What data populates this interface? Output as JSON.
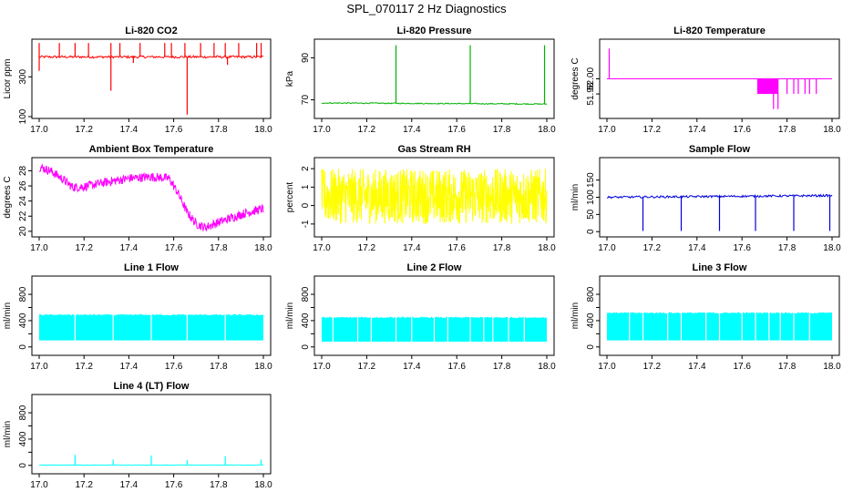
{
  "page": {
    "title": "SPL_070117  2 Hz Diagnostics"
  },
  "chart_data": [
    {
      "id": "co2",
      "type": "line",
      "title": "Li-820 CO2",
      "ylabel": "Licor ppm",
      "color": "#ff0000",
      "xlim": [
        17.0,
        18.0
      ],
      "ylim": [
        100,
        480
      ],
      "xticks": [
        17.0,
        17.2,
        17.4,
        17.6,
        17.8,
        18.0
      ],
      "yticks": [
        100,
        300
      ],
      "ytick_labels": [
        "100",
        "300"
      ],
      "baseline": 400,
      "noise": 6,
      "spikes": [
        [
          17.0,
          470
        ],
        [
          17.09,
          470
        ],
        [
          17.16,
          470
        ],
        [
          17.22,
          470
        ],
        [
          17.32,
          470
        ],
        [
          17.36,
          470
        ],
        [
          17.45,
          470
        ],
        [
          17.56,
          470
        ],
        [
          17.59,
          470
        ],
        [
          17.65,
          470
        ],
        [
          17.72,
          470
        ],
        [
          17.78,
          470
        ],
        [
          17.83,
          470
        ],
        [
          17.89,
          470
        ],
        [
          17.97,
          470
        ],
        [
          17.99,
          470
        ]
      ],
      "dips": [
        [
          17.0,
          330
        ],
        [
          17.32,
          230
        ],
        [
          17.66,
          110
        ],
        [
          17.84,
          360
        ],
        [
          17.42,
          370
        ]
      ]
    },
    {
      "id": "pressure",
      "type": "line",
      "title": "Li-820 Pressure",
      "ylabel": "kPa",
      "color": "#00b000",
      "xlim": [
        17.0,
        18.0
      ],
      "ylim": [
        62,
        98
      ],
      "xticks": [
        17.0,
        17.2,
        17.4,
        17.6,
        17.8,
        18.0
      ],
      "yticks": [
        70,
        90
      ],
      "ytick_labels": [
        "70",
        "90"
      ],
      "baseline": 68.5,
      "baseline_end": 68.0,
      "noise": 0.25,
      "spikes": [
        [
          17.33,
          96
        ],
        [
          17.66,
          96
        ],
        [
          17.99,
          96
        ]
      ]
    },
    {
      "id": "licor-temp",
      "type": "line",
      "title": "Li-820 Temperature",
      "ylabel": "degrees C",
      "color": "#ff00ff",
      "xlim": [
        17.0,
        18.0
      ],
      "ylim": [
        51.95,
        52.05
      ],
      "xticks": [
        17.0,
        17.2,
        17.4,
        17.6,
        17.8,
        18.0
      ],
      "yticks": [
        51.98,
        52.0
      ],
      "ytick_labels": [
        "51.98",
        "52.00"
      ],
      "baseline": 52.0,
      "noise": 0,
      "spikes": [
        [
          17.01,
          52.04
        ]
      ],
      "dips": [
        [
          17.67,
          51.98
        ],
        [
          17.7,
          51.98
        ],
        [
          17.74,
          51.96
        ],
        [
          17.76,
          51.96
        ],
        [
          17.8,
          51.98
        ],
        [
          17.83,
          51.98
        ],
        [
          17.85,
          51.98
        ],
        [
          17.88,
          51.98
        ],
        [
          17.9,
          51.98
        ],
        [
          17.93,
          51.98
        ]
      ]
    },
    {
      "id": "box-temp",
      "type": "line",
      "title": "Ambient Box Temperature",
      "ylabel": "degrees C",
      "color": "#ff00ff",
      "xlim": [
        17.0,
        18.0
      ],
      "ylim": [
        19.5,
        29.5
      ],
      "xticks": [
        17.0,
        17.2,
        17.4,
        17.6,
        17.8,
        18.0
      ],
      "yticks": [
        20,
        22,
        24,
        26,
        28
      ],
      "ytick_labels": [
        "20",
        "22",
        "24",
        "26",
        "28"
      ],
      "x": [
        17.0,
        17.05,
        17.1,
        17.15,
        17.2,
        17.3,
        17.4,
        17.5,
        17.58,
        17.62,
        17.66,
        17.7,
        17.74,
        17.8,
        17.86,
        17.92,
        18.0
      ],
      "y": [
        28.5,
        28.0,
        27.0,
        25.8,
        25.9,
        26.5,
        27.0,
        27.2,
        27.0,
        25.0,
        22.5,
        21.0,
        20.5,
        21.2,
        21.8,
        22.4,
        23.0
      ],
      "noise": 0.6
    },
    {
      "id": "gas-rh",
      "type": "line",
      "title": "Gas Stream RH",
      "ylabel": "percent",
      "color": "#ffff00",
      "xlim": [
        17.0,
        18.0
      ],
      "ylim": [
        -1.6,
        2.5
      ],
      "xticks": [
        17.0,
        17.2,
        17.4,
        17.6,
        17.8,
        18.0
      ],
      "yticks": [
        -1,
        0,
        1,
        2
      ],
      "ytick_labels": [
        "-1",
        "0",
        "1",
        "2"
      ],
      "baseline": 0.5,
      "noise": 1.6,
      "band": [
        -1.0,
        2.0
      ]
    },
    {
      "id": "sample-flow",
      "type": "line",
      "title": "Sample Flow",
      "ylabel": "ml/min",
      "color": "#0000dd",
      "xlim": [
        17.0,
        18.0
      ],
      "ylim": [
        -10,
        210
      ],
      "xticks": [
        17.0,
        17.2,
        17.4,
        17.6,
        17.8,
        18.0
      ],
      "yticks": [
        0,
        50,
        100,
        150
      ],
      "ytick_labels": [
        "0",
        "50",
        "100",
        "150"
      ],
      "baseline": 100,
      "baseline_end": 105,
      "noise": 3,
      "dips": [
        [
          17.16,
          2
        ],
        [
          17.33,
          2
        ],
        [
          17.5,
          2
        ],
        [
          17.66,
          2
        ],
        [
          17.83,
          2
        ],
        [
          17.99,
          2
        ]
      ]
    },
    {
      "id": "line1",
      "type": "area",
      "title": "Line 1 Flow",
      "ylabel": "ml/min",
      "color": "#00ffff",
      "xlim": [
        17.0,
        18.0
      ],
      "ylim": [
        -100,
        1050
      ],
      "xticks": [
        17.0,
        17.2,
        17.4,
        17.6,
        17.8,
        18.0
      ],
      "yticks": [
        0,
        400,
        800
      ],
      "ytick_labels": [
        "0",
        "400",
        "800"
      ],
      "minor_yticks": [
        200,
        600
      ],
      "band": [
        100,
        480
      ],
      "gaps": [
        17.16,
        17.33,
        17.5,
        17.66,
        17.83
      ]
    },
    {
      "id": "line2",
      "type": "area",
      "title": "Line 2 Flow",
      "ylabel": "ml/min",
      "color": "#00ffff",
      "xlim": [
        17.0,
        18.0
      ],
      "ylim": [
        -100,
        1050
      ],
      "xticks": [
        17.0,
        17.2,
        17.4,
        17.6,
        17.8,
        18.0
      ],
      "yticks": [
        0,
        400,
        800
      ],
      "ytick_labels": [
        "0",
        "400",
        "800"
      ],
      "minor_yticks": [
        200,
        600
      ],
      "band": [
        80,
        440
      ],
      "gaps": [
        17.05,
        17.16,
        17.22,
        17.33,
        17.4,
        17.5,
        17.56,
        17.66,
        17.72,
        17.76,
        17.83,
        17.9
      ]
    },
    {
      "id": "line3",
      "type": "area",
      "title": "Line 3 Flow",
      "ylabel": "ml/min",
      "color": "#00ffff",
      "xlim": [
        17.0,
        18.0
      ],
      "ylim": [
        -100,
        1050
      ],
      "xticks": [
        17.0,
        17.2,
        17.4,
        17.6,
        17.8,
        18.0
      ],
      "yticks": [
        0,
        400,
        800
      ],
      "ytick_labels": [
        "0",
        "400",
        "800"
      ],
      "minor_yticks": [
        200,
        600
      ],
      "band": [
        100,
        510
      ],
      "gaps": [
        17.1,
        17.16,
        17.27,
        17.33,
        17.44,
        17.5,
        17.6,
        17.66,
        17.72,
        17.77,
        17.83,
        17.9
      ]
    },
    {
      "id": "line4",
      "type": "line",
      "title": "Line 4 (LT) Flow",
      "ylabel": "ml/min",
      "color": "#00ffff",
      "xlim": [
        17.0,
        18.0
      ],
      "ylim": [
        -100,
        1050
      ],
      "xticks": [
        17.0,
        17.2,
        17.4,
        17.6,
        17.8,
        18.0
      ],
      "yticks": [
        0,
        400,
        800
      ],
      "ytick_labels": [
        "0",
        "400",
        "800"
      ],
      "minor_yticks": [
        200,
        600
      ],
      "baseline": 5,
      "noise": 4,
      "spikes": [
        [
          17.16,
          160
        ],
        [
          17.33,
          90
        ],
        [
          17.5,
          150
        ],
        [
          17.66,
          80
        ],
        [
          17.83,
          140
        ],
        [
          17.99,
          90
        ]
      ]
    }
  ]
}
